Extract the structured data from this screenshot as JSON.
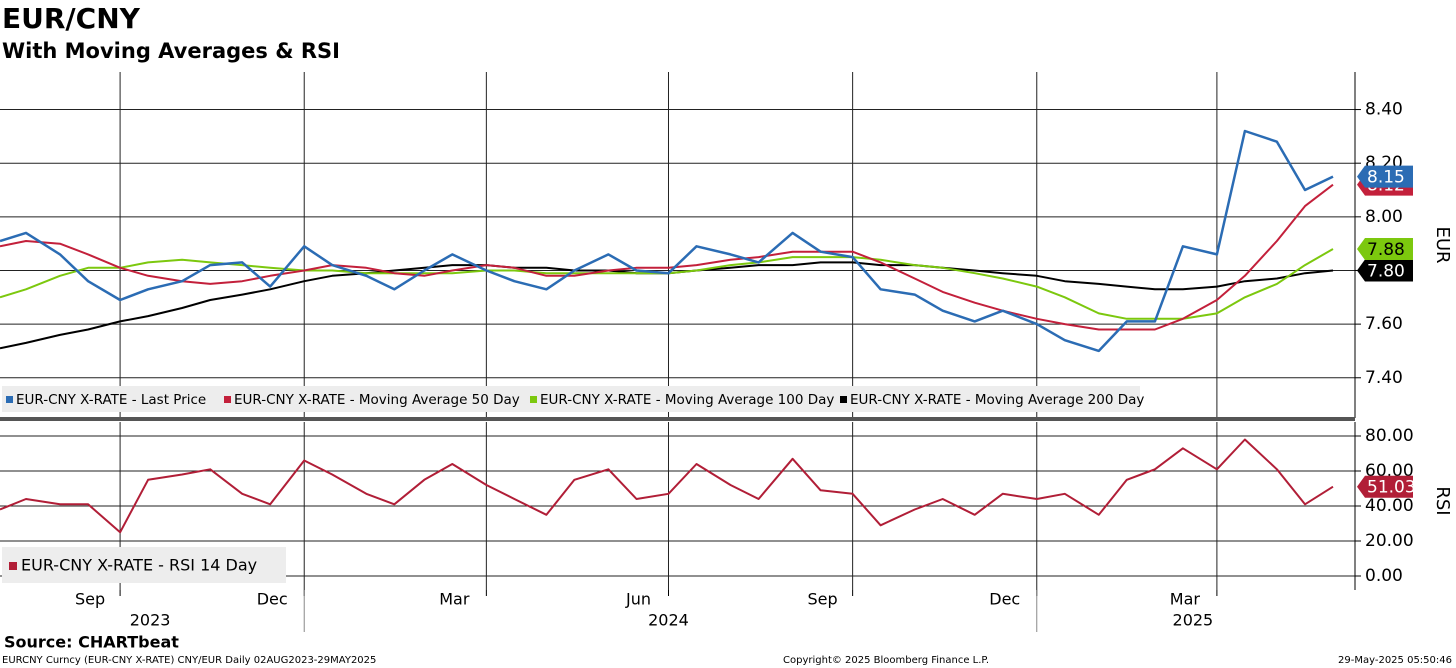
{
  "title": "EUR/CNY",
  "subtitle": "With Moving Averages & RSI",
  "source": "Source: CHARTbeat",
  "footer": {
    "left": "EURCNY Curncy (EUR-CNY X-RATE) CNY/EUR  Daily 02AUG2023-29MAY2025",
    "center": "Copyright© 2025 Bloomberg Finance L.P.",
    "right": "29-May-2025 05:50:46"
  },
  "chart_data": [
    {
      "type": "line",
      "ylabel": "EUR",
      "x": [
        "2023-08-02",
        "2023-08-15",
        "2023-09-01",
        "2023-09-15",
        "2023-10-01",
        "2023-10-15",
        "2023-11-01",
        "2023-11-15",
        "2023-12-01",
        "2023-12-15",
        "2024-01-01",
        "2024-01-15",
        "2024-02-01",
        "2024-02-15",
        "2024-03-01",
        "2024-03-15",
        "2024-04-01",
        "2024-04-15",
        "2024-05-01",
        "2024-05-15",
        "2024-06-01",
        "2024-06-15",
        "2024-07-01",
        "2024-07-15",
        "2024-08-01",
        "2024-08-15",
        "2024-09-01",
        "2024-09-15",
        "2024-10-01",
        "2024-10-15",
        "2024-11-01",
        "2024-11-15",
        "2024-12-01",
        "2024-12-15",
        "2025-01-01",
        "2025-01-15",
        "2025-02-01",
        "2025-02-15",
        "2025-03-01",
        "2025-03-15",
        "2025-04-01",
        "2025-04-15",
        "2025-05-01",
        "2025-05-15",
        "2025-05-29"
      ],
      "xlim": [
        "2023-08-02",
        "2025-06-09"
      ],
      "ylim": [
        7.25,
        8.54
      ],
      "yticks": [
        {
          "value": 7.4,
          "label": "7.40"
        },
        {
          "value": 7.6,
          "label": "7.60"
        },
        {
          "value": 7.8,
          "label": "7.80"
        },
        {
          "value": 8.0,
          "label": "8.00"
        },
        {
          "value": 8.2,
          "label": "8.20"
        },
        {
          "value": 8.4,
          "label": "8.40"
        }
      ],
      "grid": true,
      "series": [
        {
          "name": "EUR-CNY X-RATE - Last Price",
          "color": "#2b6cb4",
          "text_color": "#ffffff",
          "last_label": "8.15",
          "values": [
            7.91,
            7.94,
            7.86,
            7.76,
            7.69,
            7.73,
            7.76,
            7.82,
            7.83,
            7.74,
            7.89,
            7.82,
            7.78,
            7.73,
            7.8,
            7.86,
            7.8,
            7.76,
            7.73,
            7.8,
            7.86,
            7.8,
            7.79,
            7.89,
            7.86,
            7.83,
            7.94,
            7.87,
            7.85,
            7.73,
            7.71,
            7.65,
            7.61,
            7.65,
            7.6,
            7.54,
            7.5,
            7.61,
            7.61,
            7.89,
            7.86,
            8.32,
            8.28,
            8.1,
            8.15
          ]
        },
        {
          "name": "EUR-CNY X-RATE - Moving Average 50 Day",
          "color": "#c3203b",
          "text_color": "#ffffff",
          "last_label": "8.12",
          "values": [
            7.89,
            7.91,
            7.9,
            7.86,
            7.81,
            7.78,
            7.76,
            7.75,
            7.76,
            7.78,
            7.8,
            7.82,
            7.81,
            7.79,
            7.78,
            7.8,
            7.82,
            7.81,
            7.78,
            7.78,
            7.8,
            7.81,
            7.81,
            7.82,
            7.84,
            7.85,
            7.87,
            7.87,
            7.87,
            7.83,
            7.77,
            7.72,
            7.68,
            7.65,
            7.62,
            7.6,
            7.58,
            7.58,
            7.58,
            7.62,
            7.69,
            7.78,
            7.91,
            8.04,
            8.12
          ]
        },
        {
          "name": "EUR-CNY X-RATE - Moving Average 100 Day",
          "color": "#7cc80e",
          "text_color": "#000000",
          "last_label": "7.88",
          "values": [
            7.7,
            7.73,
            7.78,
            7.81,
            7.81,
            7.83,
            7.84,
            7.83,
            7.82,
            7.81,
            7.8,
            7.8,
            7.79,
            7.79,
            7.79,
            7.79,
            7.8,
            7.8,
            7.79,
            7.79,
            7.79,
            7.79,
            7.79,
            7.8,
            7.82,
            7.83,
            7.85,
            7.85,
            7.85,
            7.84,
            7.82,
            7.81,
            7.79,
            7.77,
            7.74,
            7.7,
            7.64,
            7.62,
            7.62,
            7.62,
            7.64,
            7.7,
            7.75,
            7.82,
            7.88
          ]
        },
        {
          "name": "EUR-CNY X-RATE - Moving Average 200 Day",
          "color": "#000000",
          "text_color": "#ffffff",
          "last_label": "7.80",
          "values": [
            7.51,
            7.53,
            7.56,
            7.58,
            7.61,
            7.63,
            7.66,
            7.69,
            7.71,
            7.73,
            7.76,
            7.78,
            7.79,
            7.8,
            7.81,
            7.82,
            7.82,
            7.81,
            7.81,
            7.8,
            7.8,
            7.79,
            7.79,
            7.8,
            7.81,
            7.82,
            7.82,
            7.83,
            7.83,
            7.82,
            7.82,
            7.81,
            7.8,
            7.79,
            7.78,
            7.76,
            7.75,
            7.74,
            7.73,
            7.73,
            7.74,
            7.76,
            7.77,
            7.79,
            7.8
          ]
        }
      ]
    },
    {
      "type": "line",
      "ylabel": "RSI",
      "x": [
        "2023-08-02",
        "2023-08-15",
        "2023-09-01",
        "2023-09-15",
        "2023-10-01",
        "2023-10-15",
        "2023-11-01",
        "2023-11-15",
        "2023-12-01",
        "2023-12-15",
        "2024-01-01",
        "2024-01-15",
        "2024-02-01",
        "2024-02-15",
        "2024-03-01",
        "2024-03-15",
        "2024-04-01",
        "2024-04-15",
        "2024-05-01",
        "2024-05-15",
        "2024-06-01",
        "2024-06-15",
        "2024-07-01",
        "2024-07-15",
        "2024-08-01",
        "2024-08-15",
        "2024-09-01",
        "2024-09-15",
        "2024-10-01",
        "2024-10-15",
        "2024-11-01",
        "2024-11-15",
        "2024-12-01",
        "2024-12-15",
        "2025-01-01",
        "2025-01-15",
        "2025-02-01",
        "2025-02-15",
        "2025-03-01",
        "2025-03-15",
        "2025-04-01",
        "2025-04-15",
        "2025-05-01",
        "2025-05-15",
        "2025-05-29"
      ],
      "xlim": [
        "2023-08-02",
        "2025-06-09"
      ],
      "ylim": [
        -8,
        88
      ],
      "yticks": [
        {
          "value": 0,
          "label": "0.00"
        },
        {
          "value": 20,
          "label": "20.00"
        },
        {
          "value": 40,
          "label": "40.00"
        },
        {
          "value": 60,
          "label": "60.00"
        },
        {
          "value": 80,
          "label": "80.00"
        }
      ],
      "grid": true,
      "xticks": [
        {
          "value": "2023-09-16",
          "label": "Sep"
        },
        {
          "value": "2023-12-16",
          "label": "Dec"
        },
        {
          "value": "2024-03-16",
          "label": "Mar"
        },
        {
          "value": "2024-06-16",
          "label": "Jun"
        },
        {
          "value": "2024-09-16",
          "label": "Sep"
        },
        {
          "value": "2024-12-16",
          "label": "Dec"
        },
        {
          "value": "2025-03-16",
          "label": "Mar"
        }
      ],
      "xgrid": [
        "2023-10-01",
        "2024-01-01",
        "2024-04-01",
        "2024-07-01",
        "2024-10-01",
        "2025-01-01",
        "2025-04-01"
      ],
      "years": [
        {
          "value": "2023-10-16",
          "label": "2023"
        },
        {
          "value": "2024-07-01",
          "label": "2024"
        },
        {
          "value": "2025-03-20",
          "label": "2025"
        }
      ],
      "year_breaks": [
        "2024-01-01",
        "2025-01-01"
      ],
      "series": [
        {
          "name": "EUR-CNY X-RATE - RSI 14 Day",
          "color": "#b11e37",
          "text_color": "#ffffff",
          "last_label": "51.03",
          "values": [
            38,
            44,
            41,
            41,
            25,
            55,
            58,
            61,
            47,
            41,
            66,
            58,
            47,
            41,
            55,
            64,
            52,
            44,
            35,
            55,
            61,
            44,
            47,
            64,
            52,
            44,
            67,
            49,
            47,
            29,
            38,
            44,
            35,
            47,
            44,
            47,
            35,
            55,
            61,
            73,
            61,
            78,
            61,
            41,
            51.03
          ]
        }
      ]
    }
  ]
}
